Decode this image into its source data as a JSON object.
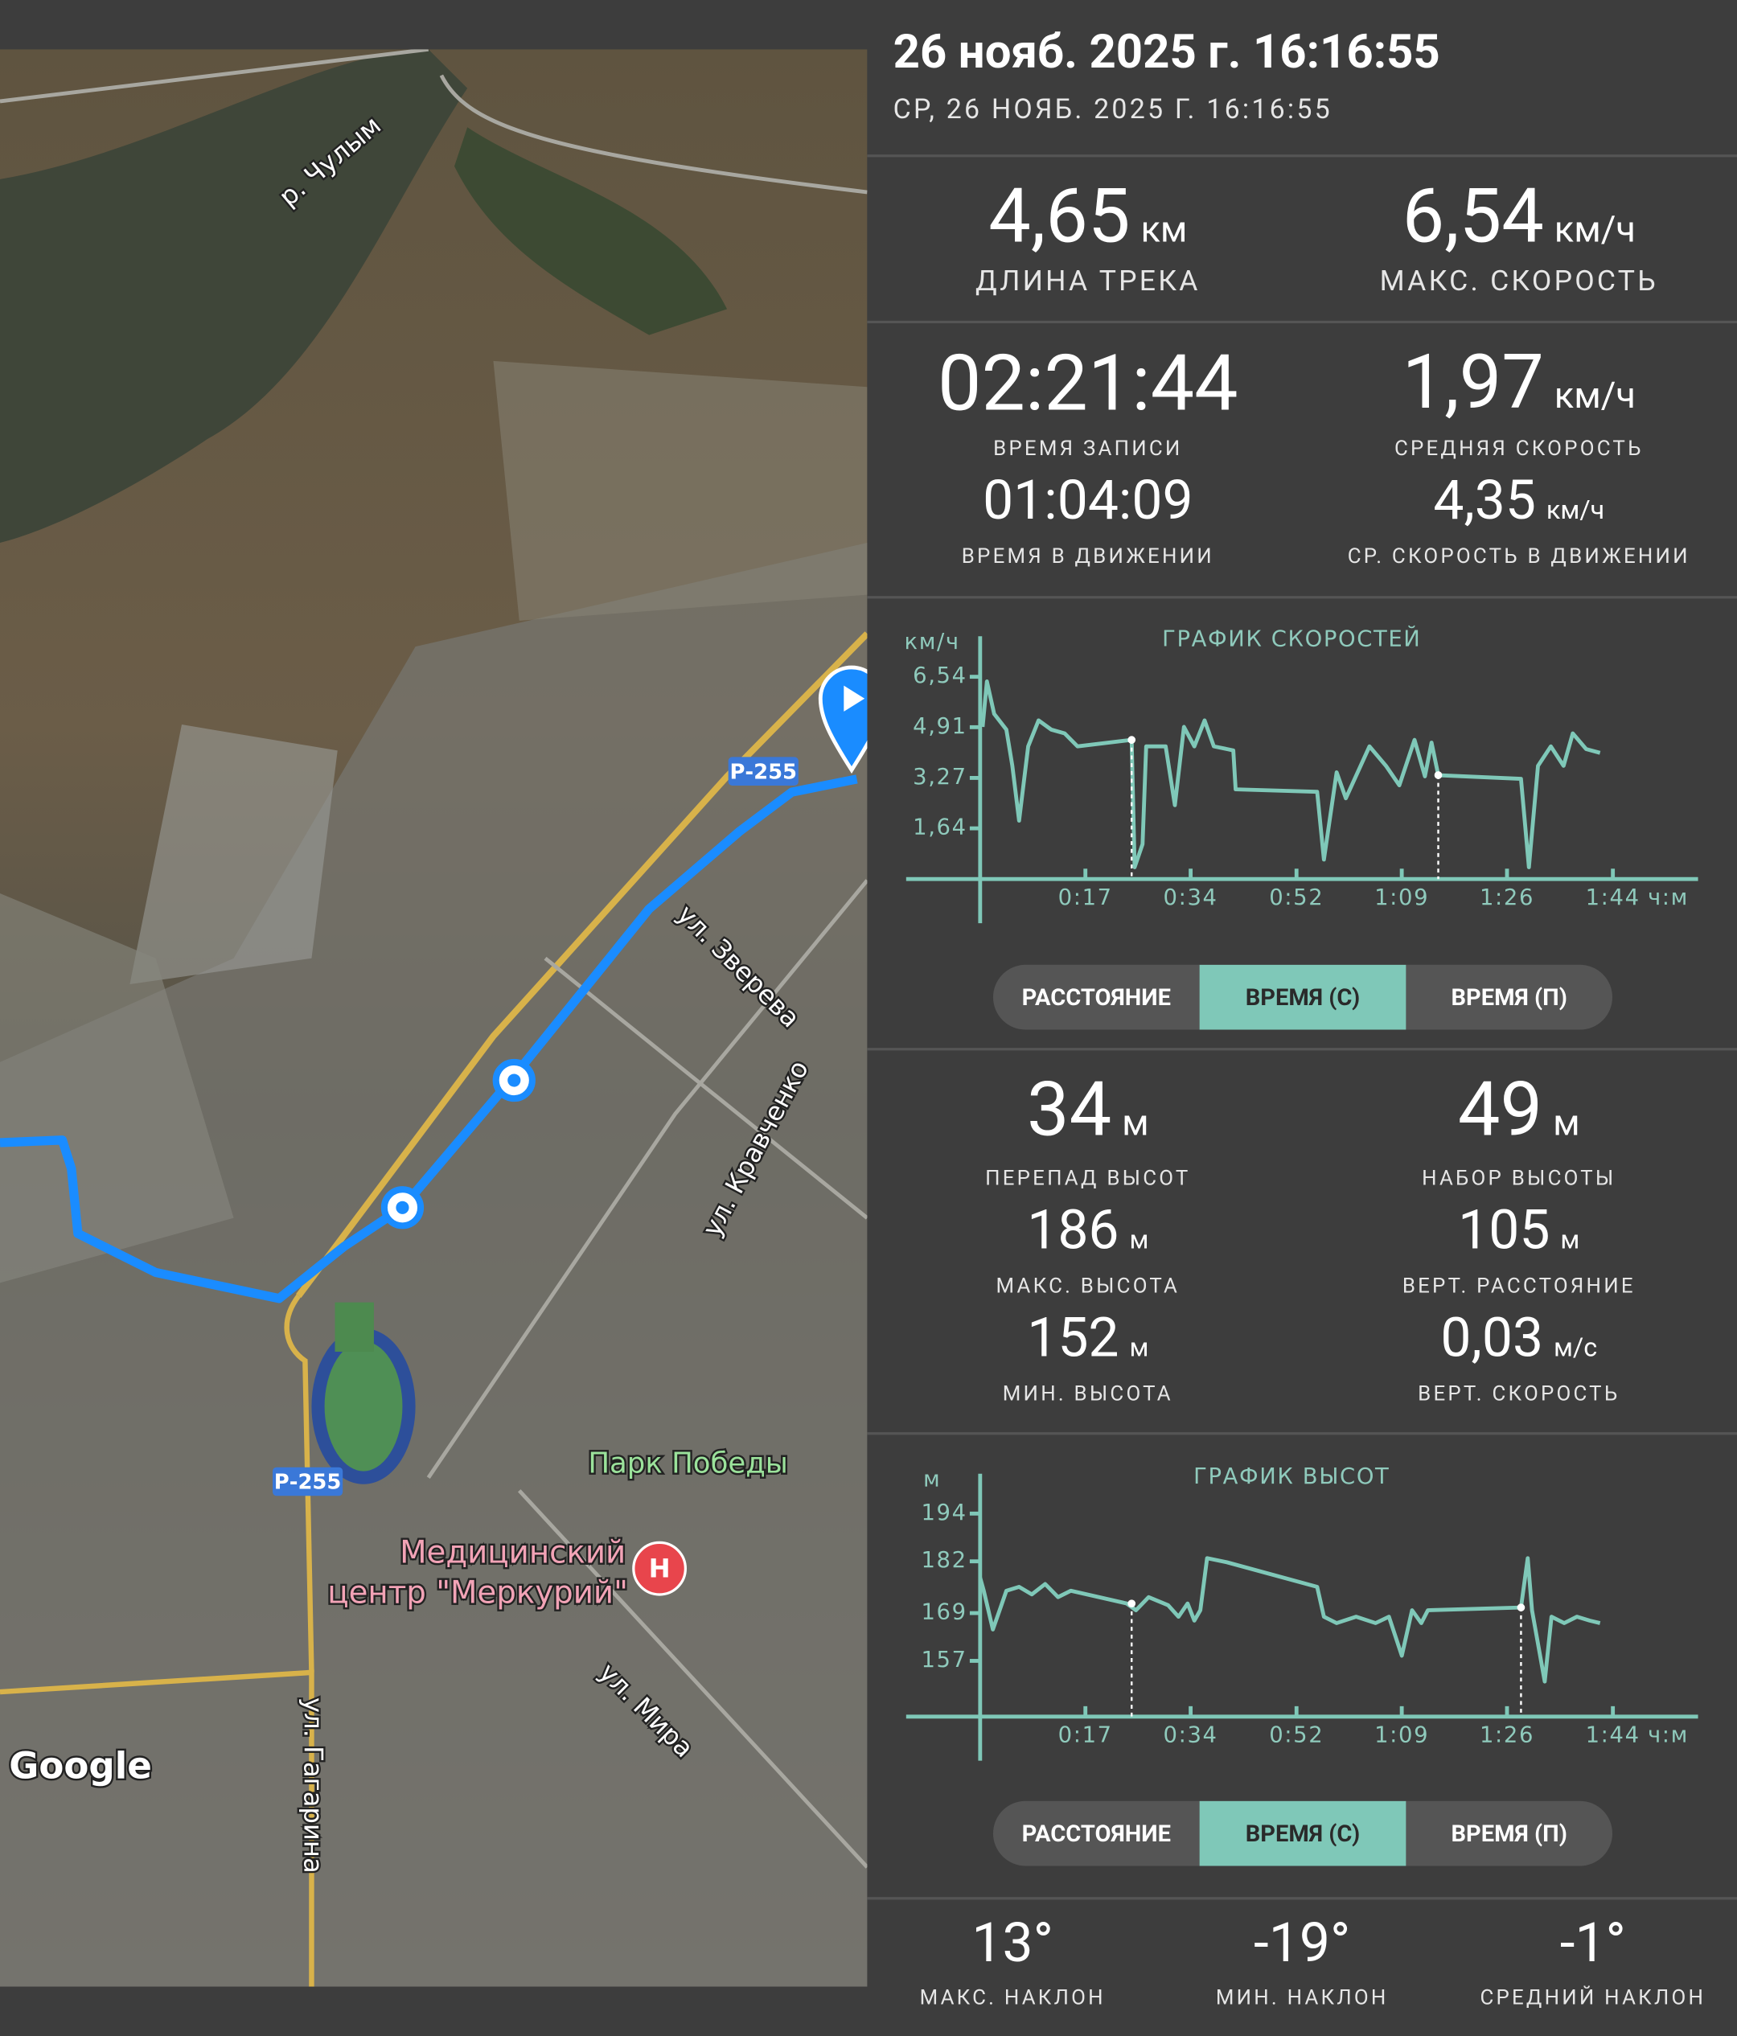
{
  "header": {
    "title": "26 нояб. 2025 г. 16:16:55",
    "subtitle": "СР, 26 НОЯБ. 2025 Г. 16:16:55"
  },
  "track_stats": [
    {
      "value": "4,65",
      "unit": "км",
      "label": "ДЛИНА ТРЕКА"
    },
    {
      "value": "6,54",
      "unit": "км/ч",
      "label": "МАКС. СКОРОСТЬ"
    },
    {
      "value": "02:21:44",
      "label": "ВРЕМЯ ЗАПИСИ"
    },
    {
      "value": "1,97",
      "unit": "км/ч",
      "label": "СРЕДНЯЯ СКОРОСТЬ"
    },
    {
      "value": "01:04:09",
      "label": "ВРЕМЯ В ДВИЖЕНИИ"
    },
    {
      "value": "4,35",
      "unit": "км/ч",
      "label": "СР. СКОРОСТЬ В ДВИЖЕНИИ"
    }
  ],
  "speed_chart": {
    "type": "line",
    "title": "ГРАФИК СКОРОСТЕЙ",
    "y_unit": "км/ч",
    "x_unit": "ч:м",
    "color": "#7fc8b8",
    "xlim": [
      0,
      118
    ],
    "ylim": [
      0,
      7.85
    ],
    "yticks": [
      {
        "value": 1.64,
        "label": "1,64"
      },
      {
        "value": 3.27,
        "label": "3,27"
      },
      {
        "value": 4.91,
        "label": "4,91"
      },
      {
        "value": 6.54,
        "label": "6,54"
      }
    ],
    "xticks": [
      {
        "value": 17.3,
        "label": "0:17"
      },
      {
        "value": 34.6,
        "label": "0:34"
      },
      {
        "value": 52,
        "label": "0:52"
      },
      {
        "value": 69.3,
        "label": "1:09"
      },
      {
        "value": 86.6,
        "label": "1:26"
      },
      {
        "value": 104,
        "label": "1:44"
      }
    ],
    "x": [
      0.4,
      1.1,
      2.3,
      4.3,
      5.3,
      6.4,
      7.9,
      9.6,
      11.7,
      13.9,
      16.0,
      24.9,
      25.4,
      26.7,
      27.3,
      30.5,
      32.0,
      33.5,
      35.2,
      36.9,
      38.4,
      41.6,
      42.0,
      55.4,
      56.5,
      58.6,
      60.1,
      64.0,
      66.7,
      68.9,
      71.4,
      73.1,
      74.2,
      75.3,
      88.9,
      90.2,
      91.7,
      93.8,
      95.9,
      97.4,
      99.6,
      101.9
    ],
    "values": [
      4.92,
      6.39,
      5.34,
      4.83,
      3.66,
      1.89,
      4.29,
      5.13,
      4.83,
      4.71,
      4.29,
      4.5,
      0.38,
      1.13,
      4.29,
      4.29,
      2.39,
      4.92,
      4.29,
      5.13,
      4.29,
      4.16,
      2.9,
      2.82,
      0.63,
      3.45,
      2.61,
      4.29,
      3.66,
      3.03,
      4.5,
      3.32,
      4.41,
      3.36,
      3.24,
      0.38,
      3.66,
      4.29,
      3.66,
      4.71,
      4.2,
      4.08
    ],
    "markers": [
      {
        "x": 24.9,
        "y": 4.5
      },
      {
        "x": 75.3,
        "y": 3.36
      }
    ]
  },
  "speed_toggle": {
    "options": [
      "РАССТОЯНИЕ",
      "ВРЕМЯ (С)",
      "ВРЕМЯ (П)"
    ],
    "selected": 1
  },
  "elevation_stats": [
    {
      "value": "34",
      "unit": "м",
      "label": "ПЕРЕПАД ВЫСОТ"
    },
    {
      "value": "49",
      "unit": "м",
      "label": "НАБОР ВЫСОТЫ"
    },
    {
      "value": "186",
      "unit": "м",
      "label": "МАКС. ВЫСОТА"
    },
    {
      "value": "105",
      "unit": "м",
      "label": "ВЕРТ. РАССТОЯНИЕ"
    },
    {
      "value": "152",
      "unit": "м",
      "label": "МИН. ВЫСОТА"
    },
    {
      "value": "0,03",
      "unit": "м/с",
      "label": "ВЕРТ. СКОРОСТЬ"
    }
  ],
  "elevation_chart": {
    "type": "line",
    "title": "ГРАФИК ВЫСОТ",
    "y_unit": "м",
    "x_unit": "ч:м",
    "color": "#7fc8b8",
    "xlim": [
      0,
      118
    ],
    "ylim": [
      143,
      204
    ],
    "yticks": [
      157,
      169,
      182,
      194
    ],
    "xticks": [
      {
        "value": 17.3,
        "label": "0:17"
      },
      {
        "value": 34.6,
        "label": "0:34"
      },
      {
        "value": 52,
        "label": "0:52"
      },
      {
        "value": 69.3,
        "label": "1:09"
      },
      {
        "value": 86.6,
        "label": "1:26"
      },
      {
        "value": 104,
        "label": "1:44"
      }
    ],
    "x": [
      0,
      0.6,
      2.1,
      3.2,
      4.3,
      6.4,
      8.5,
      10.7,
      12.8,
      14.9,
      24.1,
      25.6,
      27.7,
      30.9,
      32.6,
      34.1,
      35.2,
      36.2,
      37.3,
      40.5,
      55.4,
      56.5,
      58.6,
      61.8,
      65.0,
      67.2,
      69.3,
      71.0,
      72.5,
      73.6,
      88.9,
      90.0,
      90.7,
      92.8,
      93.9,
      96.0,
      98.1,
      100.2,
      101.9
    ],
    "values": [
      177.9,
      174.6,
      164.9,
      169.7,
      174.6,
      175.6,
      173.7,
      176.3,
      173.0,
      174.6,
      171.4,
      169.7,
      173.0,
      171.0,
      168.1,
      171.4,
      167.1,
      169.7,
      182.8,
      181.8,
      175.6,
      168.1,
      166.5,
      168.1,
      166.5,
      168.1,
      158.3,
      169.7,
      166.5,
      169.7,
      170.4,
      182.8,
      169.7,
      151.8,
      168.1,
      166.5,
      168.1,
      167.1,
      166.5
    ],
    "markers": [
      {
        "x": 24.9,
        "y": 171.4
      },
      {
        "x": 88.9,
        "y": 170.4
      }
    ]
  },
  "elevation_toggle": {
    "options": [
      "РАССТОЯНИЕ",
      "ВРЕМЯ (С)",
      "ВРЕМЯ (П)"
    ],
    "selected": 1
  },
  "slope_stats": [
    {
      "value": "13°",
      "label": "МАКС. НАКЛОН"
    },
    {
      "value": "-19°",
      "label": "МИН. НАКЛОН"
    },
    {
      "value": "-1°",
      "label": "СРЕДНИЙ НАКЛОН"
    }
  ],
  "map": {
    "labels": [
      "р. Чулым",
      "Р-255",
      "ул. Зверева",
      "ул. Кравченко",
      "Парк Победы",
      "Медицинский",
      "центр \"Меркурий\"",
      "Р-255",
      "ул. Мира",
      "ул. Гагарина"
    ],
    "hospital_icon": "Н",
    "attribution": "Google"
  }
}
